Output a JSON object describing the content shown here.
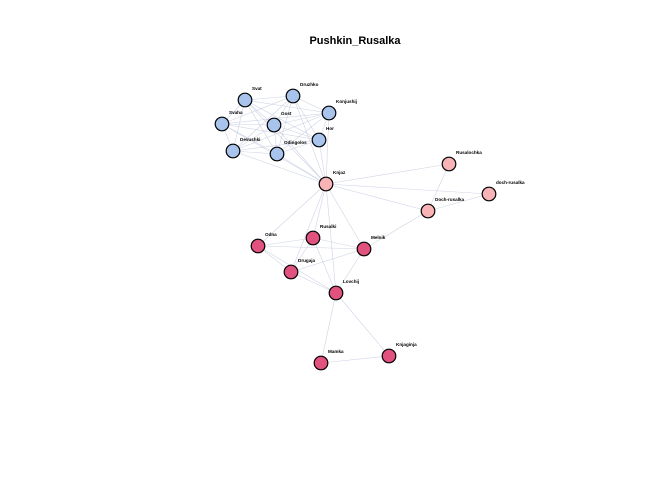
{
  "title": "Pushkin_Rusalka",
  "colors": {
    "group_blue": "#a8c4ec",
    "group_pink": "#f7b3b6",
    "group_magenta": "#e2527f",
    "edge": "#bfc6de"
  },
  "nodes": [
    {
      "id": "Svat",
      "label": "Svat",
      "group": "group_blue"
    },
    {
      "id": "Druzhko",
      "label": "Druzhko",
      "group": "group_blue"
    },
    {
      "id": "Konjushij",
      "label": "Konjushij",
      "group": "group_blue"
    },
    {
      "id": "Svaha",
      "label": "Svaha",
      "group": "group_blue"
    },
    {
      "id": "Gost",
      "label": "Gost",
      "group": "group_blue"
    },
    {
      "id": "Hor",
      "label": "Hor",
      "group": "group_blue"
    },
    {
      "id": "Devushki",
      "label": "Devushki",
      "group": "group_blue"
    },
    {
      "id": "Odingolos",
      "label": "Odingolos",
      "group": "group_blue"
    },
    {
      "id": "Knjaz",
      "label": "Knjaz",
      "group": "group_pink"
    },
    {
      "id": "Rusalochka",
      "label": "Rusalochka",
      "group": "group_pink"
    },
    {
      "id": "doch-rusalka",
      "label": "doch-rusalka",
      "group": "group_pink"
    },
    {
      "id": "Doch-rusalka",
      "label": "Doch-rusalka",
      "group": "group_pink"
    },
    {
      "id": "Odna",
      "label": "Odna",
      "group": "group_magenta"
    },
    {
      "id": "Rusalki",
      "label": "Rusalki",
      "group": "group_magenta"
    },
    {
      "id": "Melnik",
      "label": "Melnik",
      "group": "group_magenta"
    },
    {
      "id": "Drugaja",
      "label": "Drugaja",
      "group": "group_magenta"
    },
    {
      "id": "Lovchij",
      "label": "Lovchij",
      "group": "group_magenta"
    },
    {
      "id": "Mamka",
      "label": "Mamka",
      "group": "group_magenta"
    },
    {
      "id": "Knjaginja",
      "label": "Knjaginja",
      "group": "group_magenta"
    }
  ],
  "edges": [
    [
      "Svat",
      "Druzhko"
    ],
    [
      "Svat",
      "Konjushij"
    ],
    [
      "Svat",
      "Svaha"
    ],
    [
      "Svat",
      "Gost"
    ],
    [
      "Svat",
      "Hor"
    ],
    [
      "Svat",
      "Devushki"
    ],
    [
      "Svat",
      "Odingolos"
    ],
    [
      "Svat",
      "Knjaz"
    ],
    [
      "Druzhko",
      "Konjushij"
    ],
    [
      "Druzhko",
      "Svaha"
    ],
    [
      "Druzhko",
      "Gost"
    ],
    [
      "Druzhko",
      "Hor"
    ],
    [
      "Druzhko",
      "Devushki"
    ],
    [
      "Druzhko",
      "Odingolos"
    ],
    [
      "Druzhko",
      "Knjaz"
    ],
    [
      "Konjushij",
      "Svaha"
    ],
    [
      "Konjushij",
      "Gost"
    ],
    [
      "Konjushij",
      "Hor"
    ],
    [
      "Konjushij",
      "Devushki"
    ],
    [
      "Konjushij",
      "Odingolos"
    ],
    [
      "Konjushij",
      "Knjaz"
    ],
    [
      "Svaha",
      "Gost"
    ],
    [
      "Svaha",
      "Hor"
    ],
    [
      "Svaha",
      "Devushki"
    ],
    [
      "Svaha",
      "Odingolos"
    ],
    [
      "Svaha",
      "Knjaz"
    ],
    [
      "Gost",
      "Hor"
    ],
    [
      "Gost",
      "Devushki"
    ],
    [
      "Gost",
      "Odingolos"
    ],
    [
      "Gost",
      "Knjaz"
    ],
    [
      "Hor",
      "Devushki"
    ],
    [
      "Hor",
      "Odingolos"
    ],
    [
      "Hor",
      "Knjaz"
    ],
    [
      "Devushki",
      "Odingolos"
    ],
    [
      "Devushki",
      "Knjaz"
    ],
    [
      "Odingolos",
      "Knjaz"
    ],
    [
      "Knjaz",
      "Rusalochka"
    ],
    [
      "Knjaz",
      "doch-rusalka"
    ],
    [
      "Knjaz",
      "Doch-rusalka"
    ],
    [
      "Knjaz",
      "Odna"
    ],
    [
      "Knjaz",
      "Rusalki"
    ],
    [
      "Knjaz",
      "Melnik"
    ],
    [
      "Knjaz",
      "Lovchij"
    ],
    [
      "Knjaz",
      "Drugaja"
    ],
    [
      "Rusalochka",
      "Doch-rusalka"
    ],
    [
      "doch-rusalka",
      "Doch-rusalka"
    ],
    [
      "Doch-rusalka",
      "Melnik"
    ],
    [
      "Odna",
      "Rusalki"
    ],
    [
      "Odna",
      "Melnik"
    ],
    [
      "Odna",
      "Drugaja"
    ],
    [
      "Odna",
      "Lovchij"
    ],
    [
      "Rusalki",
      "Melnik"
    ],
    [
      "Rusalki",
      "Drugaja"
    ],
    [
      "Rusalki",
      "Lovchij"
    ],
    [
      "Melnik",
      "Drugaja"
    ],
    [
      "Melnik",
      "Lovchij"
    ],
    [
      "Drugaja",
      "Lovchij"
    ],
    [
      "Lovchij",
      "Mamka"
    ],
    [
      "Lovchij",
      "Knjaginja"
    ],
    [
      "Mamka",
      "Knjaginja"
    ]
  ]
}
